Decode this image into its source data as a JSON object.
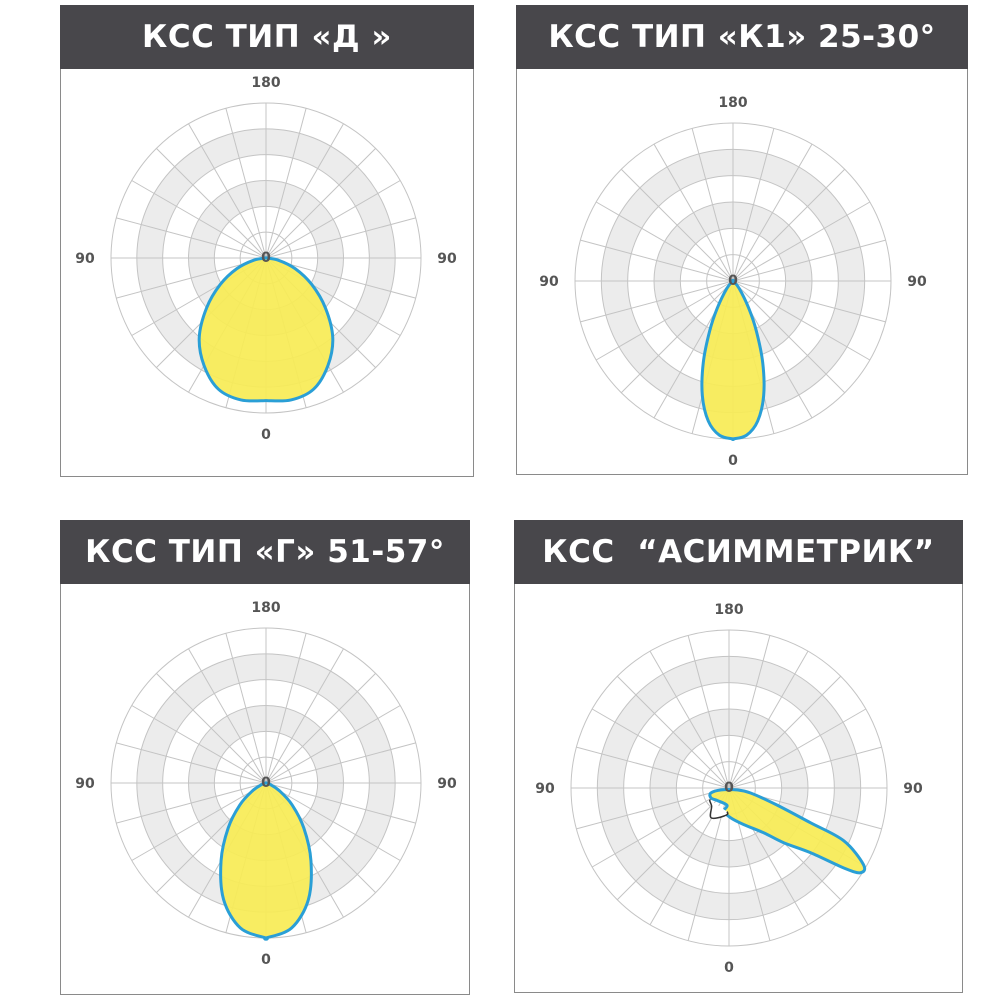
{
  "colors": {
    "header": "#48474b",
    "fill": "#f7ec55",
    "stroke": "#2a9fd6",
    "grid": "#c4c4c4",
    "band": "#ececec",
    "secondary": "#333333"
  },
  "chart_data": [
    {
      "type": "polar",
      "title": "КСС ТИП «Д »",
      "symmetric": true,
      "angle_zero": "bottom",
      "radial_max": 1,
      "rings": 6,
      "spoke_step_deg": 15,
      "tick_labels": {
        "top": "180",
        "left": "90",
        "right": "90",
        "bottom": "0",
        "center": "0"
      },
      "series": [
        {
          "angles": [
            0,
            10,
            20,
            30,
            40,
            50,
            60,
            70,
            80,
            90
          ],
          "values": [
            0.92,
            0.93,
            0.9,
            0.8,
            0.67,
            0.5,
            0.34,
            0.2,
            0.08,
            0
          ]
        }
      ]
    },
    {
      "type": "polar",
      "title": "КСС ТИП «К1» 25-30°",
      "symmetric": true,
      "angle_zero": "bottom",
      "radial_max": 1,
      "rings": 6,
      "spoke_step_deg": 15,
      "tick_labels": {
        "top": "180",
        "left": "90",
        "right": "90",
        "bottom": "0",
        "center": "0"
      },
      "series": [
        {
          "angles": [
            0,
            5,
            10,
            15,
            20,
            25,
            30,
            40,
            50
          ],
          "values": [
            1.0,
            0.98,
            0.9,
            0.75,
            0.55,
            0.35,
            0.2,
            0.06,
            0
          ]
        }
      ]
    },
    {
      "type": "polar",
      "title": "КСС ТИП «Г» 51-57°",
      "symmetric": true,
      "angle_zero": "bottom",
      "radial_max": 1,
      "rings": 6,
      "spoke_step_deg": 15,
      "tick_labels": {
        "top": "180",
        "left": "90",
        "right": "90",
        "bottom": "0",
        "center": "0"
      },
      "series": [
        {
          "angles": [
            0,
            10,
            20,
            30,
            40,
            50,
            60,
            70,
            80
          ],
          "values": [
            1.0,
            0.95,
            0.8,
            0.58,
            0.38,
            0.22,
            0.1,
            0.03,
            0
          ]
        }
      ]
    },
    {
      "type": "polar",
      "title": "КСС  “АСИММЕТРИК”",
      "symmetric": false,
      "angle_zero": "bottom",
      "radial_max": 1,
      "rings": 6,
      "spoke_step_deg": 15,
      "tick_labels": {
        "top": "180",
        "left": "90",
        "right": "90",
        "bottom": "0",
        "center": "0"
      },
      "series": [
        {
          "filled": true,
          "angles": [
            -74.5,
            -76,
            76,
            77,
            70.5,
            66.9,
            65.3,
            60.3,
            57.2,
            55.2,
            51.6,
            45,
            37.9,
            22.1,
            3.8,
            -12.3,
            -6.7,
            -45,
            -61
          ],
          "values": [
            0.12,
            0.05,
            0.05,
            0.14,
            0.32,
            0.56,
            0.8,
            0.98,
            0.99,
            0.89,
            0.66,
            0.49,
            0.36,
            0.25,
            0.19,
            0.15,
            0.11,
            0.11,
            0.13
          ]
        },
        {
          "filled": false,
          "angles": [
            -56.3,
            -43.4,
            -31,
            -10,
            -5
          ],
          "values": [
            0.14,
            0.16,
            0.22,
            0.18,
            0.15
          ]
        }
      ]
    }
  ]
}
